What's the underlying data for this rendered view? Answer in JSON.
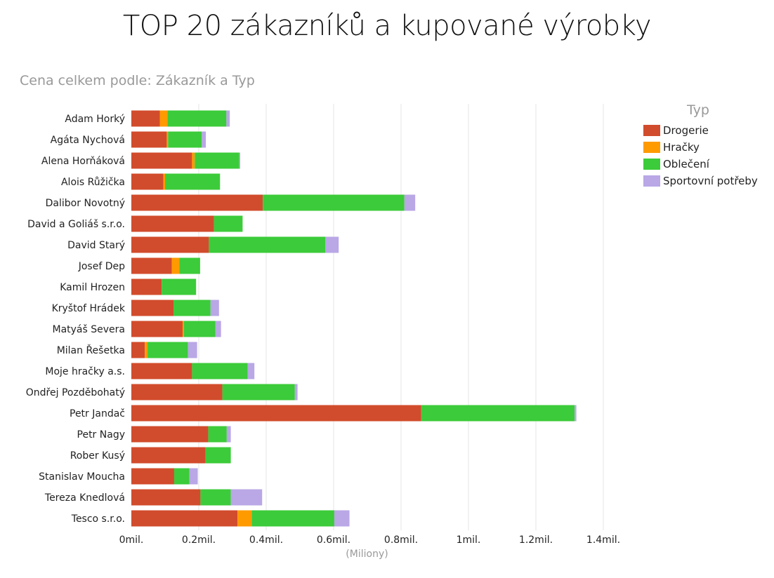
{
  "title": "TOP 20 zákazníků a kupované výrobky",
  "subtitle": "Cena celkem podle: Zákazník a Typ",
  "chart_data": {
    "type": "bar",
    "orientation": "horizontal",
    "stacked": true,
    "title": "TOP 20 zákazníků a kupované výrobky",
    "subtitle": "Cena celkem podle: Zákazník a Typ",
    "xlabel": "(Miliony)",
    "ylabel": "",
    "xlim": [
      0,
      1.4
    ],
    "xticks": [
      0,
      0.2,
      0.4,
      0.6,
      0.8,
      1,
      1.2,
      1.4
    ],
    "xtick_labels": [
      "0mil.",
      "0.2mil.",
      "0.4mil.",
      "0.6mil.",
      "0.8mil.",
      "1mil.",
      "1.2mil.",
      "1.4mil."
    ],
    "grid": true,
    "legend_title": "Typ",
    "legend_position": "top-right",
    "categories": [
      "Adam Horký",
      "Agáta Nychová",
      "Alena Horňáková",
      "Alois Růžička",
      "Dalibor Novotný",
      "David a Goliáš s.r.o.",
      "David Starý",
      "Josef Dep",
      "Kamil Hrozen",
      "Kryštof Hrádek",
      "Matyáš Severa",
      "Milan Řešetka",
      "Moje hračky a.s.",
      "Ondřej Pozděbohatý",
      "Petr Jandač",
      "Petr Nagy",
      "Rober Kusý",
      "Stanislav Moucha",
      "Tereza Knedlová",
      "Tesco s.r.o."
    ],
    "series": [
      {
        "name": "Drogerie",
        "color": "#D14C2C",
        "values": [
          0.085,
          0.105,
          0.18,
          0.095,
          0.39,
          0.245,
          0.23,
          0.12,
          0.09,
          0.125,
          0.152,
          0.04,
          0.18,
          0.27,
          0.86,
          0.228,
          0.22,
          0.127,
          0.205,
          0.315
        ]
      },
      {
        "name": "Hračky",
        "color": "#FF9A00",
        "values": [
          0.022,
          0.004,
          0.008,
          0.005,
          0,
          0,
          0,
          0.022,
          0,
          0,
          0.004,
          0.008,
          0,
          0,
          0,
          0,
          0,
          0,
          0,
          0.042
        ]
      },
      {
        "name": "Oblečení",
        "color": "#3CCB3A",
        "values": [
          0.175,
          0.1,
          0.132,
          0.163,
          0.42,
          0.085,
          0.345,
          0.062,
          0.102,
          0.11,
          0.093,
          0.12,
          0.165,
          0.215,
          0.455,
          0.055,
          0.075,
          0.045,
          0.09,
          0.245
        ]
      },
      {
        "name": "Sportovní potřeby",
        "color": "#B9A7E6",
        "values": [
          0.01,
          0.012,
          0.003,
          0,
          0.032,
          0,
          0.04,
          0,
          0,
          0.025,
          0.017,
          0.027,
          0.02,
          0.008,
          0.005,
          0.012,
          0,
          0.025,
          0.093,
          0.045
        ]
      }
    ]
  }
}
